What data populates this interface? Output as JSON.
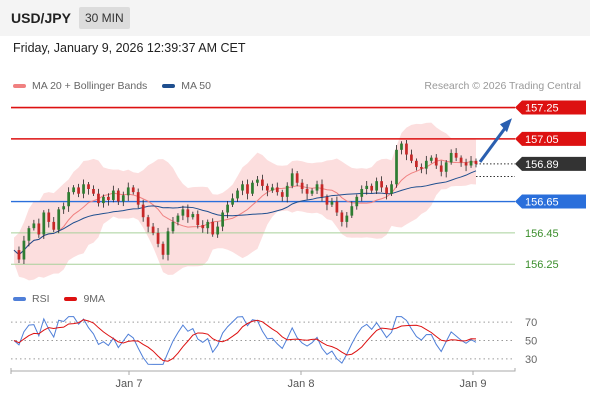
{
  "header": {
    "pair": "USD/JPY",
    "timeframe": "30 MIN"
  },
  "timestamp": "Friday, January 9, 2026 12:39:37 AM CET",
  "credit": "Research © 2026 Trading Central",
  "colors": {
    "resistance": "#dd1111",
    "support": "#2a6fdb",
    "target": "#3b8e2c",
    "price": "#333333",
    "ma20": "#f08080",
    "ma50": "#1f4f8f",
    "rsi": "#4f7fd8",
    "rsi9ma": "#dd1111",
    "band": "#fbd6d6"
  },
  "chart_data": [
    {
      "type": "candlestick",
      "legend": [
        {
          "label": "MA 20 + Bollinger Bands",
          "color": "#f08080"
        },
        {
          "label": "MA 50",
          "color": "#1f4f8f"
        }
      ],
      "y_range": [
        156.13,
        157.33
      ],
      "levels": [
        {
          "value": 157.25,
          "label": "157.25",
          "kind": "resistance"
        },
        {
          "value": 157.05,
          "label": "157.05",
          "kind": "resistance"
        },
        {
          "value": 156.89,
          "label": "156.89",
          "kind": "price"
        },
        {
          "value": 156.65,
          "label": "156.65",
          "kind": "support"
        },
        {
          "value": 156.45,
          "label": "156.45",
          "kind": "target"
        },
        {
          "value": 156.25,
          "label": "156.25",
          "kind": "target"
        }
      ],
      "close_path": [
        156.34,
        156.28,
        156.4,
        156.48,
        156.51,
        156.44,
        156.58,
        156.52,
        156.47,
        156.6,
        156.62,
        156.71,
        156.74,
        156.7,
        156.76,
        156.73,
        156.7,
        156.64,
        156.68,
        156.66,
        156.72,
        156.65,
        156.69,
        156.74,
        156.71,
        156.63,
        156.55,
        156.49,
        156.45,
        156.38,
        156.31,
        156.46,
        156.52,
        156.56,
        156.6,
        156.55,
        156.57,
        156.5,
        156.48,
        156.52,
        156.44,
        156.49,
        156.58,
        156.63,
        156.67,
        156.72,
        156.76,
        156.7,
        156.77,
        156.79,
        156.75,
        156.72,
        156.74,
        156.71,
        156.68,
        156.75,
        156.83,
        156.77,
        156.73,
        156.7,
        156.72,
        156.76,
        156.68,
        156.63,
        156.65,
        156.58,
        156.52,
        156.56,
        156.62,
        156.68,
        156.73,
        156.75,
        156.72,
        156.78,
        156.74,
        156.7,
        156.76,
        156.98,
        157.02,
        156.95,
        156.91,
        156.87,
        156.86,
        156.91,
        156.93,
        156.88,
        156.84,
        156.9,
        156.96,
        156.93,
        156.9,
        156.88,
        156.91,
        156.89
      ],
      "projection": {
        "from": 156.89,
        "to": 157.15
      },
      "x_ticks": [
        "Jan 7",
        "Jan 8",
        "Jan 9"
      ]
    },
    {
      "type": "line",
      "legend": [
        {
          "label": "RSI",
          "color": "#4f7fd8"
        },
        {
          "label": "9MA",
          "color": "#dd1111"
        }
      ],
      "y_ticks": [
        "70",
        "50",
        "30"
      ],
      "ylim": [
        20,
        80
      ],
      "levels": [
        70,
        50,
        30
      ]
    }
  ]
}
